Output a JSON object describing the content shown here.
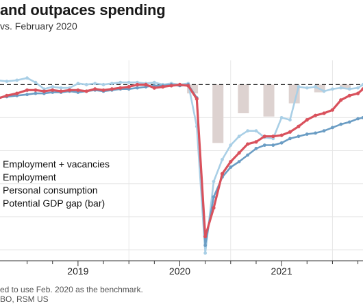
{
  "header": {
    "title": "and outpaces spending",
    "subtitle": "vs. February 2020"
  },
  "footer": {
    "note": "ed to use Feb. 2020 as the benchmark.",
    "source": "BO, RSM US"
  },
  "colors": {
    "employment_vacancies": "#a9cfe6",
    "employment": "#6b9dc4",
    "personal_consumption": "#d9515c",
    "gap_bar": "#ddd2d0",
    "baseline": "#111111",
    "grid": "#e6e6e6"
  },
  "chart_data": {
    "type": "line",
    "x_tick_labels": [
      {
        "label": "2019",
        "x": 2019.0
      },
      {
        "label": "2020",
        "x": 2020.0
      },
      {
        "label": "2021",
        "x": 2021.0
      }
    ],
    "x_range": [
      2018.2,
      2021.8
    ],
    "y_range": [
      -16,
      2.2
    ],
    "baseline": 0,
    "legend": {
      "placement": "middle-left",
      "entries": [
        "Employment + vacancies",
        "Employment",
        "Personal consumption",
        "Potential GDP gap (bar)"
      ]
    },
    "bars": {
      "name": "Potential GDP gap (bar)",
      "x": [
        2020.125,
        2020.375,
        2020.625,
        2020.875,
        2021.125,
        2021.375,
        2021.625
      ],
      "values": [
        -0.8,
        -5.3,
        -2.6,
        -2.9,
        -1.7,
        -0.7,
        -0.4
      ]
    },
    "series": [
      {
        "name": "Employment + vacancies",
        "x": [
          2018.2,
          2018.3,
          2018.4,
          2018.5,
          2018.583,
          2018.667,
          2018.75,
          2018.833,
          2018.917,
          2019.0,
          2019.083,
          2019.167,
          2019.25,
          2019.333,
          2019.417,
          2019.5,
          2019.583,
          2019.667,
          2019.75,
          2019.833,
          2019.917,
          2020.0,
          2020.083,
          2020.167,
          2020.25,
          2020.333,
          2020.417,
          2020.5,
          2020.583,
          2020.667,
          2020.75,
          2020.833,
          2020.917,
          2021.0,
          2021.083,
          2021.167,
          2021.25,
          2021.333,
          2021.417,
          2021.5,
          2021.583,
          2021.667,
          2021.75,
          2021.8
        ],
        "values": [
          0.4,
          0.3,
          0.4,
          0.6,
          0.2,
          -0.4,
          -0.2,
          -0.3,
          -0.3,
          0.1,
          0.0,
          0.1,
          0.0,
          0.1,
          0.2,
          0.2,
          0.2,
          0.1,
          0.2,
          0.0,
          0.1,
          0.0,
          0.1,
          -3.8,
          -15.3,
          -8.8,
          -6.8,
          -5.5,
          -4.7,
          -4.2,
          -4.2,
          -4.8,
          -4.9,
          -3.0,
          -3.2,
          -0.2,
          -0.3,
          -0.2,
          -0.6,
          -0.4,
          -0.3,
          -0.4,
          -0.3,
          0.0
        ]
      },
      {
        "name": "Employment",
        "x": [
          2018.2,
          2018.3,
          2018.4,
          2018.5,
          2018.583,
          2018.667,
          2018.75,
          2018.833,
          2018.917,
          2019.0,
          2019.083,
          2019.167,
          2019.25,
          2019.333,
          2019.417,
          2019.5,
          2019.583,
          2019.667,
          2019.75,
          2019.833,
          2019.917,
          2020.0,
          2020.083,
          2020.167,
          2020.25,
          2020.333,
          2020.417,
          2020.5,
          2020.583,
          2020.667,
          2020.75,
          2020.833,
          2020.917,
          2021.0,
          2021.083,
          2021.167,
          2021.25,
          2021.333,
          2021.417,
          2021.5,
          2021.583,
          2021.667,
          2021.75,
          2021.8
        ],
        "values": [
          -1.2,
          -1.1,
          -1.0,
          -0.9,
          -0.8,
          -0.8,
          -0.7,
          -0.7,
          -0.6,
          -0.7,
          -0.6,
          -0.5,
          -0.6,
          -0.5,
          -0.4,
          -0.4,
          -0.3,
          -0.2,
          -0.1,
          -0.1,
          0.0,
          -0.1,
          0.0,
          -1.2,
          -14.6,
          -10.2,
          -8.4,
          -7.5,
          -7.0,
          -6.4,
          -5.8,
          -5.5,
          -5.5,
          -5.3,
          -4.9,
          -4.7,
          -4.5,
          -4.4,
          -4.2,
          -3.9,
          -3.6,
          -3.4,
          -3.1,
          -3.0
        ]
      },
      {
        "name": "Personal consumption",
        "x": [
          2018.2,
          2018.3,
          2018.4,
          2018.5,
          2018.583,
          2018.667,
          2018.75,
          2018.833,
          2018.917,
          2019.0,
          2019.083,
          2019.167,
          2019.25,
          2019.333,
          2019.417,
          2019.5,
          2019.583,
          2019.667,
          2019.75,
          2019.833,
          2019.917,
          2020.0,
          2020.083,
          2020.167,
          2020.25,
          2020.333,
          2020.417,
          2020.5,
          2020.583,
          2020.667,
          2020.75,
          2020.833,
          2020.917,
          2021.0,
          2021.083,
          2021.167,
          2021.25,
          2021.333,
          2021.417,
          2021.5,
          2021.583,
          2021.667,
          2021.75,
          2021.8
        ],
        "values": [
          -1.3,
          -1.0,
          -0.8,
          -0.5,
          -0.5,
          -0.6,
          -0.5,
          -0.6,
          -0.5,
          -0.5,
          -0.6,
          -0.4,
          -0.5,
          -0.4,
          -0.3,
          -0.2,
          0.0,
          0.0,
          -0.3,
          -0.2,
          -0.1,
          0.0,
          -0.1,
          -1.3,
          -13.8,
          -11.2,
          -8.1,
          -7.0,
          -6.2,
          -5.4,
          -5.2,
          -4.7,
          -4.7,
          -4.6,
          -4.3,
          -3.8,
          -3.2,
          -2.8,
          -2.6,
          -2.3,
          -1.4,
          -1.0,
          -0.8,
          -0.4
        ]
      }
    ]
  }
}
